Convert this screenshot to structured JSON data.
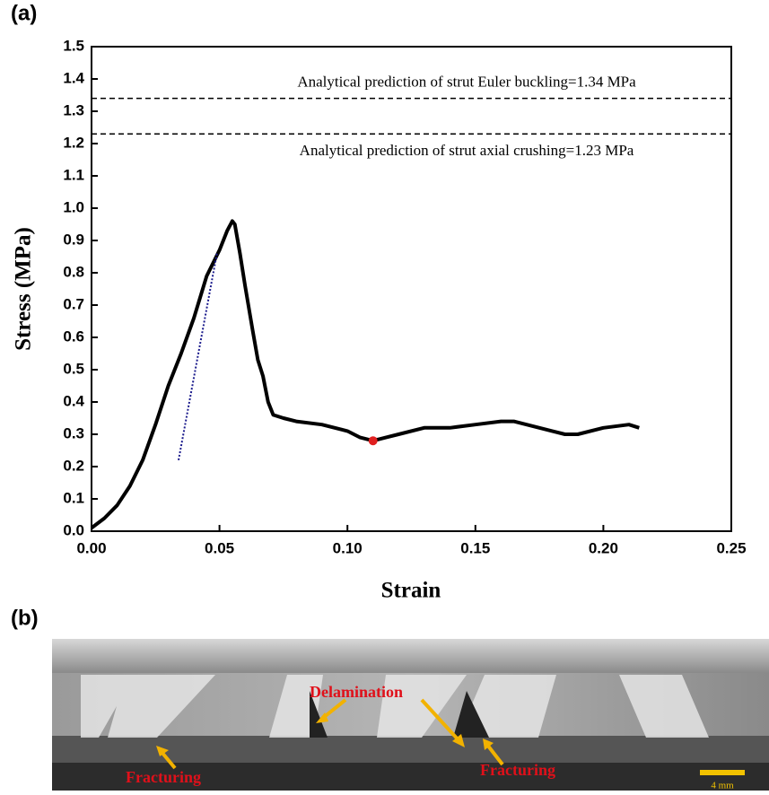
{
  "chart_data": {
    "type": "line",
    "panel_label": "(a)",
    "x_label": "Strain",
    "y_label": "Stress (MPa)",
    "xlim": [
      0,
      0.25
    ],
    "xticks": [
      {
        "value": 0,
        "label": "0.00"
      },
      0.05,
      {
        "value": 0.1,
        "label": "0.10"
      },
      0.15,
      {
        "value": 0.2,
        "label": "0.20"
      },
      0.25
    ],
    "ylim": [
      0,
      1.5
    ],
    "yticks": [
      {
        "value": 0,
        "label": "0.0"
      },
      0.1,
      0.2,
      0.3,
      0.4,
      0.5,
      0.6,
      0.7,
      0.8,
      0.9,
      {
        "value": 1,
        "label": "1.0"
      },
      1.1,
      1.2,
      1.3,
      1.4,
      1.5
    ],
    "series": [
      {
        "color": "#000000",
        "x": [
          0,
          0.005,
          0.01,
          0.015,
          0.02,
          0.025,
          0.03,
          0.035,
          0.04,
          0.045,
          0.05,
          0.053,
          0.055,
          0.056,
          0.058,
          0.06,
          0.063,
          0.065,
          0.067,
          0.068,
          0.069,
          0.071,
          0.075,
          0.08,
          0.09,
          0.1,
          0.105,
          0.11,
          0.115,
          0.12,
          0.13,
          0.14,
          0.15,
          0.16,
          0.165,
          0.17,
          0.175,
          0.18,
          0.185,
          0.19,
          0.2,
          0.21,
          0.214
        ],
        "values": [
          0.01,
          0.04,
          0.08,
          0.14,
          0.22,
          0.33,
          0.45,
          0.55,
          0.66,
          0.79,
          0.87,
          0.93,
          0.96,
          0.95,
          0.86,
          0.76,
          0.62,
          0.53,
          0.48,
          0.44,
          0.4,
          0.36,
          0.35,
          0.34,
          0.33,
          0.31,
          0.29,
          0.28,
          0.29,
          0.3,
          0.32,
          0.32,
          0.33,
          0.34,
          0.34,
          0.33,
          0.32,
          0.31,
          0.3,
          0.3,
          0.32,
          0.33,
          0.32
        ]
      }
    ],
    "fit_line": {
      "color": "#1a1a8c",
      "x": [
        0.034,
        0.049
      ],
      "values": [
        0.22,
        0.86
      ]
    },
    "marker": {
      "color": "#e02020",
      "x": 0.11,
      "value": 0.28
    },
    "reference_lines": [
      {
        "value": 1.34,
        "label": "Analytical prediction of strut Euler buckling=1.34 MPa"
      },
      {
        "value": 1.23,
        "label": "Analytical prediction of strut axial crushing=1.23 MPa"
      }
    ]
  },
  "photo": {
    "panel_label": "(b)",
    "annotations": [
      "Delamination",
      "Fracturing",
      "Fracturing"
    ],
    "scale_bar": "4 mm"
  }
}
